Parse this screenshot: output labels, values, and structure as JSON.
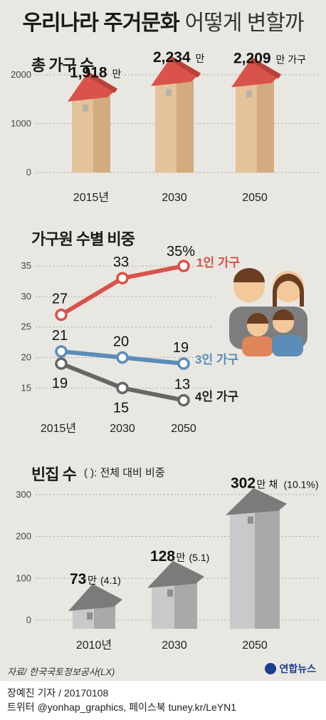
{
  "title": {
    "strong": "우리나라 주거문화",
    "light": "어떻게 변할까"
  },
  "charts": {
    "households": {
      "section_title": "총 가구 수",
      "chart_data": {
        "type": "bar",
        "categories": [
          "2015년",
          "2030",
          "2050"
        ],
        "values": [
          1918,
          2234,
          2209
        ],
        "value_labels": [
          "1,918",
          "2,234",
          "2,209"
        ],
        "value_units": [
          "만",
          "만",
          "만 가구"
        ],
        "yticks": [
          0,
          1000,
          2000
        ],
        "ylim": [
          0,
          2100
        ],
        "colors": {
          "roof": "#d9534a",
          "wall": "#e4c39a",
          "wall_side": "#d4ab7e",
          "window": "#b9b2a8"
        }
      }
    },
    "members": {
      "section_title": "가구원 수별 비중",
      "chart_data": {
        "type": "line",
        "x": [
          "2015년",
          "2030",
          "2050"
        ],
        "series": [
          {
            "name": "1인 가구",
            "values": [
              27,
              33,
              35
            ],
            "labels": [
              "27",
              "33",
              "35%"
            ],
            "color": "#d9534a"
          },
          {
            "name": "3인 가구",
            "values": [
              21,
              20,
              19
            ],
            "labels": [
              "21",
              "20",
              "19"
            ],
            "color": "#5b8db8"
          },
          {
            "name": "4인 가구",
            "values": [
              19,
              15,
              13
            ],
            "labels": [
              "19",
              "15",
              "13"
            ],
            "color": "#666666"
          }
        ],
        "yticks": [
          15,
          20,
          25,
          30,
          35
        ],
        "ylim": [
          12,
          37
        ]
      }
    },
    "vacant": {
      "section_title": "빈집 수",
      "note": "( ): 전체 대비 비중",
      "chart_data": {
        "type": "bar",
        "categories": [
          "2010년",
          "2030",
          "2050"
        ],
        "values": [
          73,
          128,
          302
        ],
        "value_labels": [
          "73",
          "128",
          "302"
        ],
        "value_units": [
          "만",
          "만",
          "만 채"
        ],
        "shares": [
          "(4.1)",
          "(5.1)",
          "(10.1%)"
        ],
        "yticks": [
          0,
          100,
          200,
          300
        ],
        "ylim": [
          0,
          320
        ],
        "colors": {
          "roof": "#7b7b7b",
          "wall": "#c9c9c9",
          "wall_side": "#a9a9a9"
        }
      }
    }
  },
  "source": "자료/ 한국국토정보공사(LX)",
  "logo": "연합뉴스",
  "credit": {
    "line1": "장예진 기자 / 20170108",
    "line2": "트위터 @yonhap_graphics, 페이스북 tuney.kr/LeYN1"
  }
}
